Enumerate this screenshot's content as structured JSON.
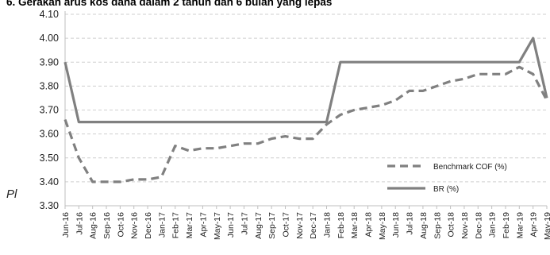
{
  "header": {
    "title": "6. Gerakan arus kos dana dalam 2 tahun dan 6 bulan yang lepas",
    "side_text": "Pl"
  },
  "chart_data": {
    "type": "line",
    "title": "6. Gerakan arus kos dana dalam 2 tahun dan 6 bulan yang lepas",
    "xlabel": "",
    "ylabel": "",
    "ylim": [
      3.3,
      4.1
    ],
    "yticks": [
      "3.30",
      "3.40",
      "3.50",
      "3.60",
      "3.70",
      "3.80",
      "3.90",
      "4.00",
      "4.10"
    ],
    "grid": "horizontal dashed",
    "legend_position": "bottom-right",
    "categories": [
      "Jun-16",
      "Jul-16",
      "Aug-16",
      "Sep-16",
      "Oct-16",
      "Nov-16",
      "Dec-16",
      "Jan-17",
      "Feb-17",
      "Mar-17",
      "Apr-17",
      "May-17",
      "Jun-17",
      "Jul-17",
      "Aug-17",
      "Sep-17",
      "Oct-17",
      "Nov-17",
      "Dec-17",
      "Jan-18",
      "Feb-18",
      "Mar-18",
      "Apr-18",
      "May-18",
      "Jun-18",
      "Jul-18",
      "Aug-18",
      "Sep-18",
      "Oct-18",
      "Nov-18",
      "Dec-18",
      "Jan-19",
      "Feb-19",
      "Mar-19",
      "Apr-19",
      "May-19"
    ],
    "series": [
      {
        "name": "Benchmark COF (%)",
        "style": "dashed",
        "color": "#808080",
        "values": [
          3.66,
          3.5,
          3.4,
          3.4,
          3.4,
          3.41,
          3.41,
          3.42,
          3.55,
          3.53,
          3.54,
          3.54,
          3.55,
          3.56,
          3.56,
          3.58,
          3.59,
          3.58,
          3.58,
          3.64,
          3.68,
          3.7,
          3.71,
          3.72,
          3.74,
          3.78,
          3.78,
          3.8,
          3.82,
          3.83,
          3.85,
          3.85,
          3.85,
          3.88,
          3.85,
          3.74
        ]
      },
      {
        "name": "BR (%)",
        "style": "solid",
        "color": "#808080",
        "values": [
          3.9,
          3.65,
          3.65,
          3.65,
          3.65,
          3.65,
          3.65,
          3.65,
          3.65,
          3.65,
          3.65,
          3.65,
          3.65,
          3.65,
          3.65,
          3.65,
          3.65,
          3.65,
          3.65,
          3.65,
          3.9,
          3.9,
          3.9,
          3.9,
          3.9,
          3.9,
          3.9,
          3.9,
          3.9,
          3.9,
          3.9,
          3.9,
          3.9,
          3.9,
          4.0,
          3.75
        ]
      }
    ]
  }
}
